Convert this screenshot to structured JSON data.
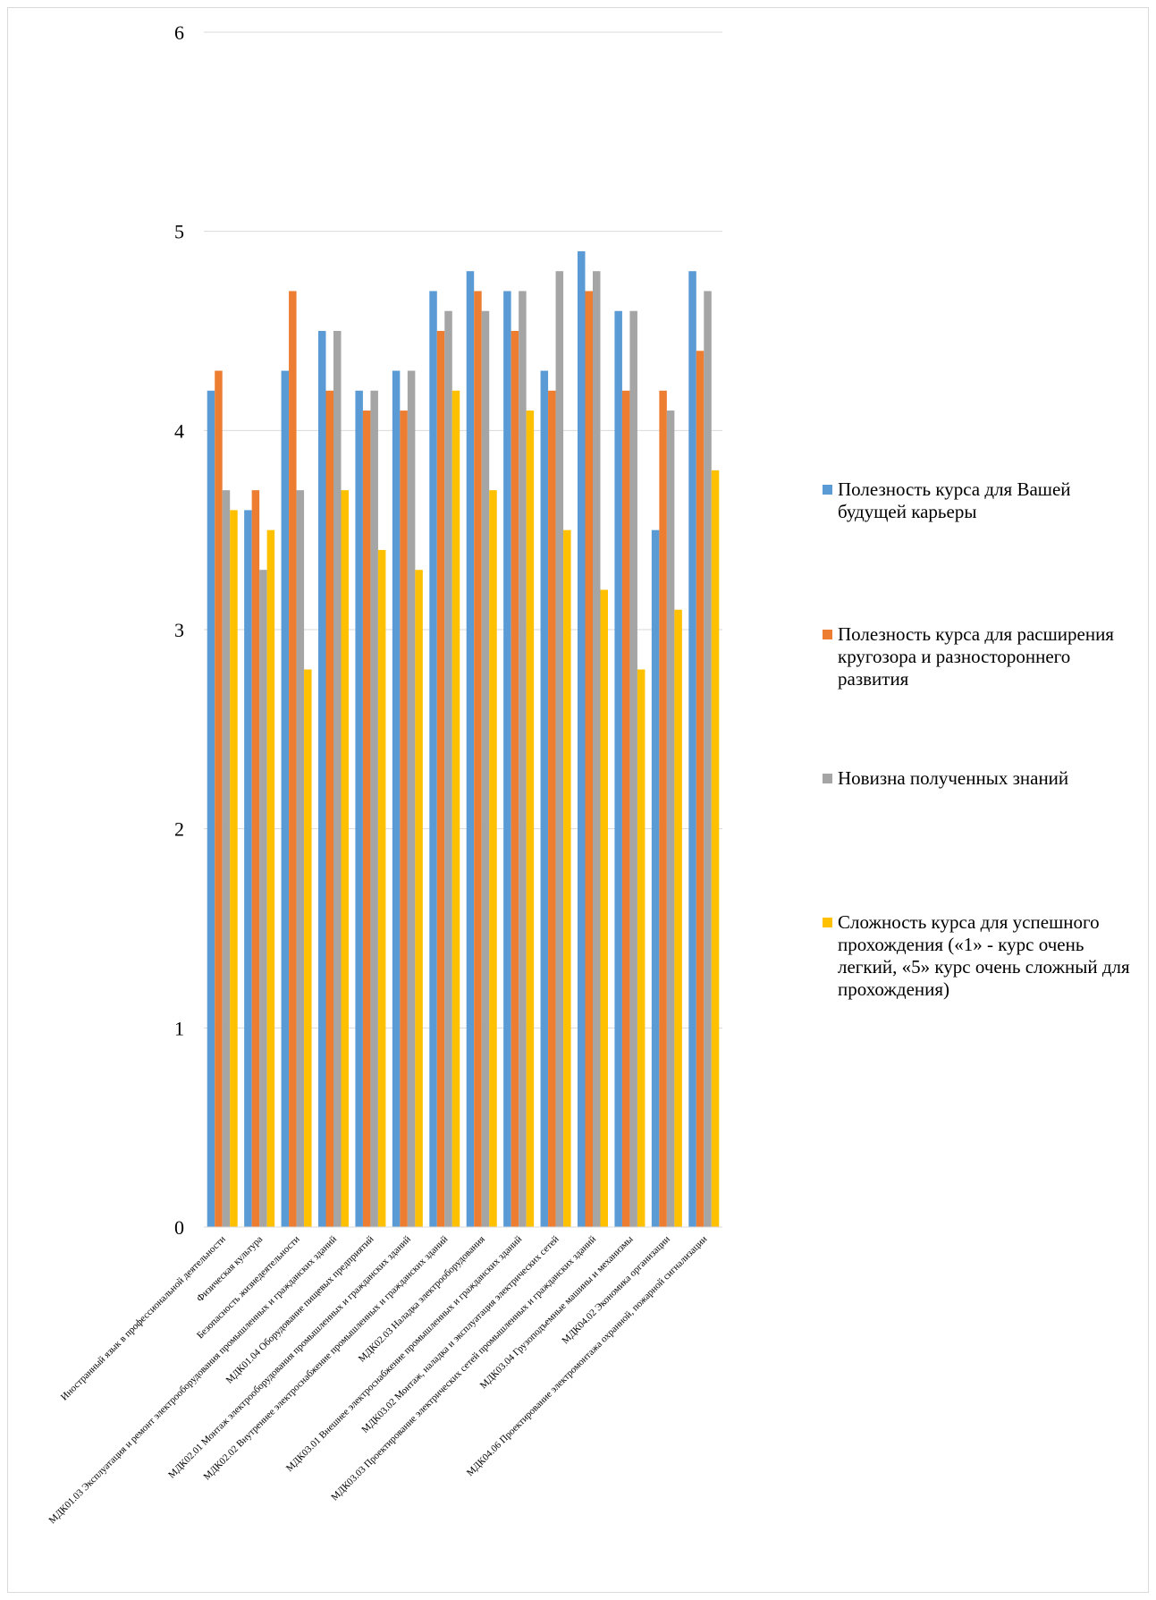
{
  "chart_data": {
    "type": "bar",
    "ylim": [
      0,
      6
    ],
    "yticks": [
      0,
      1,
      2,
      3,
      4,
      5,
      6
    ],
    "grid": true,
    "legend_position": "right",
    "categories": [
      "Иностранный язык в профессиональной деятельности",
      "Физическая культура",
      "Безопасность жизнедеятельности",
      "МДК01.03 Эксплуатация и ремонт электрооборудования промышленных и гражданских зданий",
      "МДК01.04 Оборудование пищевых предприятий",
      "МДК02.01 Монтаж электрооборудования промышленных и гражданских зданий",
      "МДК02.02 Внутреннее электроснабжение промышленных и гражданских зданий",
      "МДК02.03 Наладка электрооборудования",
      "МДК03.01 Внешнее электроснабжение промышленных и гражданских зданий",
      "МДК03.02 Монтаж, наладка и эксплуатация электрических сетей",
      "МДК03.03 Проектирование электрических сетей промышленных и гражданских зданий",
      "МДК03.04 Грузоподъемные машины и механизмы",
      "МДК04.02 Экономика организации",
      "МДК04.06 Проектирование электромонтажа охранной, пожарной сигнализации"
    ],
    "series": [
      {
        "name": "Полезность курса для Вашей будущей карьеры",
        "color": "#5b9bd5",
        "values": [
          4.2,
          3.6,
          4.3,
          4.5,
          4.2,
          4.3,
          4.7,
          4.8,
          4.7,
          4.3,
          4.9,
          4.6,
          3.5,
          4.8
        ]
      },
      {
        "name": "Полезность курса для расширения кругозора и разностороннего развития",
        "color": "#ed7d31",
        "values": [
          4.3,
          3.7,
          4.7,
          4.2,
          4.1,
          4.1,
          4.5,
          4.7,
          4.5,
          4.2,
          4.7,
          4.2,
          4.2,
          4.4
        ]
      },
      {
        "name": "Новизна полученных знаний",
        "color": "#a5a5a5",
        "values": [
          3.7,
          3.3,
          3.7,
          4.5,
          4.2,
          4.3,
          4.6,
          4.6,
          4.7,
          4.8,
          4.8,
          4.6,
          4.1,
          4.7
        ]
      },
      {
        "name": "Сложность курса для успешного прохождения («1» - курс очень легкий, «5» курс очень сложный для прохождения)",
        "color": "#ffc000",
        "values": [
          3.6,
          3.5,
          2.8,
          3.7,
          3.4,
          3.3,
          4.2,
          3.7,
          4.1,
          3.5,
          3.2,
          2.8,
          3.1,
          3.8
        ]
      }
    ]
  },
  "legend": {
    "items": [
      {
        "label": "Полезность курса для Вашей будущей карьеры",
        "color": "#5b9bd5"
      },
      {
        "label": "Полезность курса для расширения кругозора и разностороннего развития",
        "color": "#ed7d31"
      },
      {
        "label": "Новизна полученных знаний",
        "color": "#a5a5a5"
      },
      {
        "label": "Сложность курса для успешного прохождения («1» - курс очень легкий, «5» курс очень сложный для прохождения)",
        "color": "#ffc000"
      }
    ]
  }
}
